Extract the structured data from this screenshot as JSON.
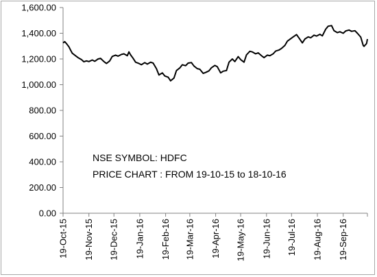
{
  "chart_data": {
    "type": "line",
    "title": "",
    "xlabel": "",
    "ylabel": "",
    "ylim": [
      0,
      1600
    ],
    "xlim": [
      "2015-10-19",
      "2016-10-18"
    ],
    "grid": false,
    "legend": "none",
    "colors": {
      "line": "#000000",
      "axis": "#808080",
      "frame": "#a6a6a6"
    },
    "y_ticks": [
      {
        "value": 0,
        "label": "0.00"
      },
      {
        "value": 200,
        "label": "200.00"
      },
      {
        "value": 400,
        "label": "400.00"
      },
      {
        "value": 600,
        "label": "600.00"
      },
      {
        "value": 800,
        "label": "800.00"
      },
      {
        "value": 1000,
        "label": "1,000.00"
      },
      {
        "value": 1200,
        "label": "1,200.00"
      },
      {
        "value": 1400,
        "label": "1,400.00"
      },
      {
        "value": 1600,
        "label": "1,600.00"
      }
    ],
    "x_ticks": [
      {
        "date": "2015-10-19",
        "label": "19-Oct-15"
      },
      {
        "date": "2015-11-19",
        "label": "19-Nov-15"
      },
      {
        "date": "2015-12-19",
        "label": "19-Dec-15"
      },
      {
        "date": "2016-01-19",
        "label": "19-Jan-16"
      },
      {
        "date": "2016-02-19",
        "label": "19-Feb-16"
      },
      {
        "date": "2016-03-19",
        "label": "19-Mar-16"
      },
      {
        "date": "2016-04-19",
        "label": "19-Apr-16"
      },
      {
        "date": "2016-05-19",
        "label": "19-May-16"
      },
      {
        "date": "2016-06-19",
        "label": "19-Jun-16"
      },
      {
        "date": "2016-07-19",
        "label": "19-Jul-16"
      },
      {
        "date": "2016-08-19",
        "label": "19-Aug-16"
      },
      {
        "date": "2016-09-19",
        "label": "19-Sep-16"
      }
    ],
    "annotations": [
      {
        "text": "NSE SYMBOL: HDFC"
      },
      {
        "text": "PRICE CHART : FROM 19-10-15 to 18-10-16"
      }
    ],
    "series": [
      {
        "points": [
          [
            "2015-10-19",
            1325
          ],
          [
            "2015-10-21",
            1335
          ],
          [
            "2015-10-23",
            1320
          ],
          [
            "2015-10-26",
            1295
          ],
          [
            "2015-10-28",
            1270
          ],
          [
            "2015-10-30",
            1245
          ],
          [
            "2015-11-03",
            1225
          ],
          [
            "2015-11-06",
            1210
          ],
          [
            "2015-11-10",
            1195
          ],
          [
            "2015-11-13",
            1178
          ],
          [
            "2015-11-16",
            1185
          ],
          [
            "2015-11-19",
            1180
          ],
          [
            "2015-11-23",
            1192
          ],
          [
            "2015-11-26",
            1182
          ],
          [
            "2015-11-30",
            1200
          ],
          [
            "2015-12-03",
            1205
          ],
          [
            "2015-12-07",
            1180
          ],
          [
            "2015-12-10",
            1165
          ],
          [
            "2015-12-14",
            1185
          ],
          [
            "2015-12-17",
            1220
          ],
          [
            "2015-12-21",
            1230
          ],
          [
            "2015-12-24",
            1222
          ],
          [
            "2015-12-28",
            1235
          ],
          [
            "2015-12-31",
            1240
          ],
          [
            "2016-01-04",
            1225
          ],
          [
            "2016-01-06",
            1255
          ],
          [
            "2016-01-08",
            1232
          ],
          [
            "2016-01-11",
            1205
          ],
          [
            "2016-01-14",
            1175
          ],
          [
            "2016-01-18",
            1165
          ],
          [
            "2016-01-21",
            1155
          ],
          [
            "2016-01-25",
            1172
          ],
          [
            "2016-01-28",
            1160
          ],
          [
            "2016-02-01",
            1175
          ],
          [
            "2016-02-04",
            1168
          ],
          [
            "2016-02-08",
            1125
          ],
          [
            "2016-02-11",
            1075
          ],
          [
            "2016-02-15",
            1092
          ],
          [
            "2016-02-18",
            1068
          ],
          [
            "2016-02-22",
            1058
          ],
          [
            "2016-02-25",
            1030
          ],
          [
            "2016-02-29",
            1052
          ],
          [
            "2016-03-03",
            1110
          ],
          [
            "2016-03-07",
            1130
          ],
          [
            "2016-03-10",
            1155
          ],
          [
            "2016-03-14",
            1148
          ],
          [
            "2016-03-17",
            1168
          ],
          [
            "2016-03-21",
            1172
          ],
          [
            "2016-03-24",
            1145
          ],
          [
            "2016-03-28",
            1125
          ],
          [
            "2016-03-31",
            1120
          ],
          [
            "2016-04-04",
            1088
          ],
          [
            "2016-04-07",
            1095
          ],
          [
            "2016-04-11",
            1108
          ],
          [
            "2016-04-14",
            1132
          ],
          [
            "2016-04-18",
            1150
          ],
          [
            "2016-04-21",
            1140
          ],
          [
            "2016-04-25",
            1092
          ],
          [
            "2016-04-28",
            1105
          ],
          [
            "2016-05-02",
            1110
          ],
          [
            "2016-05-05",
            1175
          ],
          [
            "2016-05-09",
            1200
          ],
          [
            "2016-05-12",
            1180
          ],
          [
            "2016-05-16",
            1218
          ],
          [
            "2016-05-19",
            1195
          ],
          [
            "2016-05-23",
            1175
          ],
          [
            "2016-05-26",
            1232
          ],
          [
            "2016-05-30",
            1260
          ],
          [
            "2016-06-02",
            1255
          ],
          [
            "2016-06-06",
            1240
          ],
          [
            "2016-06-09",
            1248
          ],
          [
            "2016-06-13",
            1225
          ],
          [
            "2016-06-16",
            1210
          ],
          [
            "2016-06-20",
            1230
          ],
          [
            "2016-06-23",
            1225
          ],
          [
            "2016-06-27",
            1240
          ],
          [
            "2016-06-30",
            1262
          ],
          [
            "2016-07-04",
            1270
          ],
          [
            "2016-07-07",
            1282
          ],
          [
            "2016-07-11",
            1305
          ],
          [
            "2016-07-14",
            1338
          ],
          [
            "2016-07-18",
            1358
          ],
          [
            "2016-07-21",
            1372
          ],
          [
            "2016-07-25",
            1390
          ],
          [
            "2016-07-28",
            1362
          ],
          [
            "2016-08-01",
            1325
          ],
          [
            "2016-08-04",
            1355
          ],
          [
            "2016-08-08",
            1372
          ],
          [
            "2016-08-11",
            1365
          ],
          [
            "2016-08-15",
            1385
          ],
          [
            "2016-08-18",
            1378
          ],
          [
            "2016-08-22",
            1392
          ],
          [
            "2016-08-25",
            1380
          ],
          [
            "2016-08-29",
            1432
          ],
          [
            "2016-09-01",
            1455
          ],
          [
            "2016-09-05",
            1460
          ],
          [
            "2016-09-08",
            1420
          ],
          [
            "2016-09-12",
            1405
          ],
          [
            "2016-09-15",
            1412
          ],
          [
            "2016-09-19",
            1400
          ],
          [
            "2016-09-22",
            1418
          ],
          [
            "2016-09-26",
            1425
          ],
          [
            "2016-09-29",
            1415
          ],
          [
            "2016-10-03",
            1420
          ],
          [
            "2016-10-06",
            1400
          ],
          [
            "2016-10-10",
            1370
          ],
          [
            "2016-10-13",
            1305
          ],
          [
            "2016-10-14",
            1298
          ],
          [
            "2016-10-17",
            1320
          ],
          [
            "2016-10-18",
            1355
          ]
        ]
      }
    ]
  }
}
